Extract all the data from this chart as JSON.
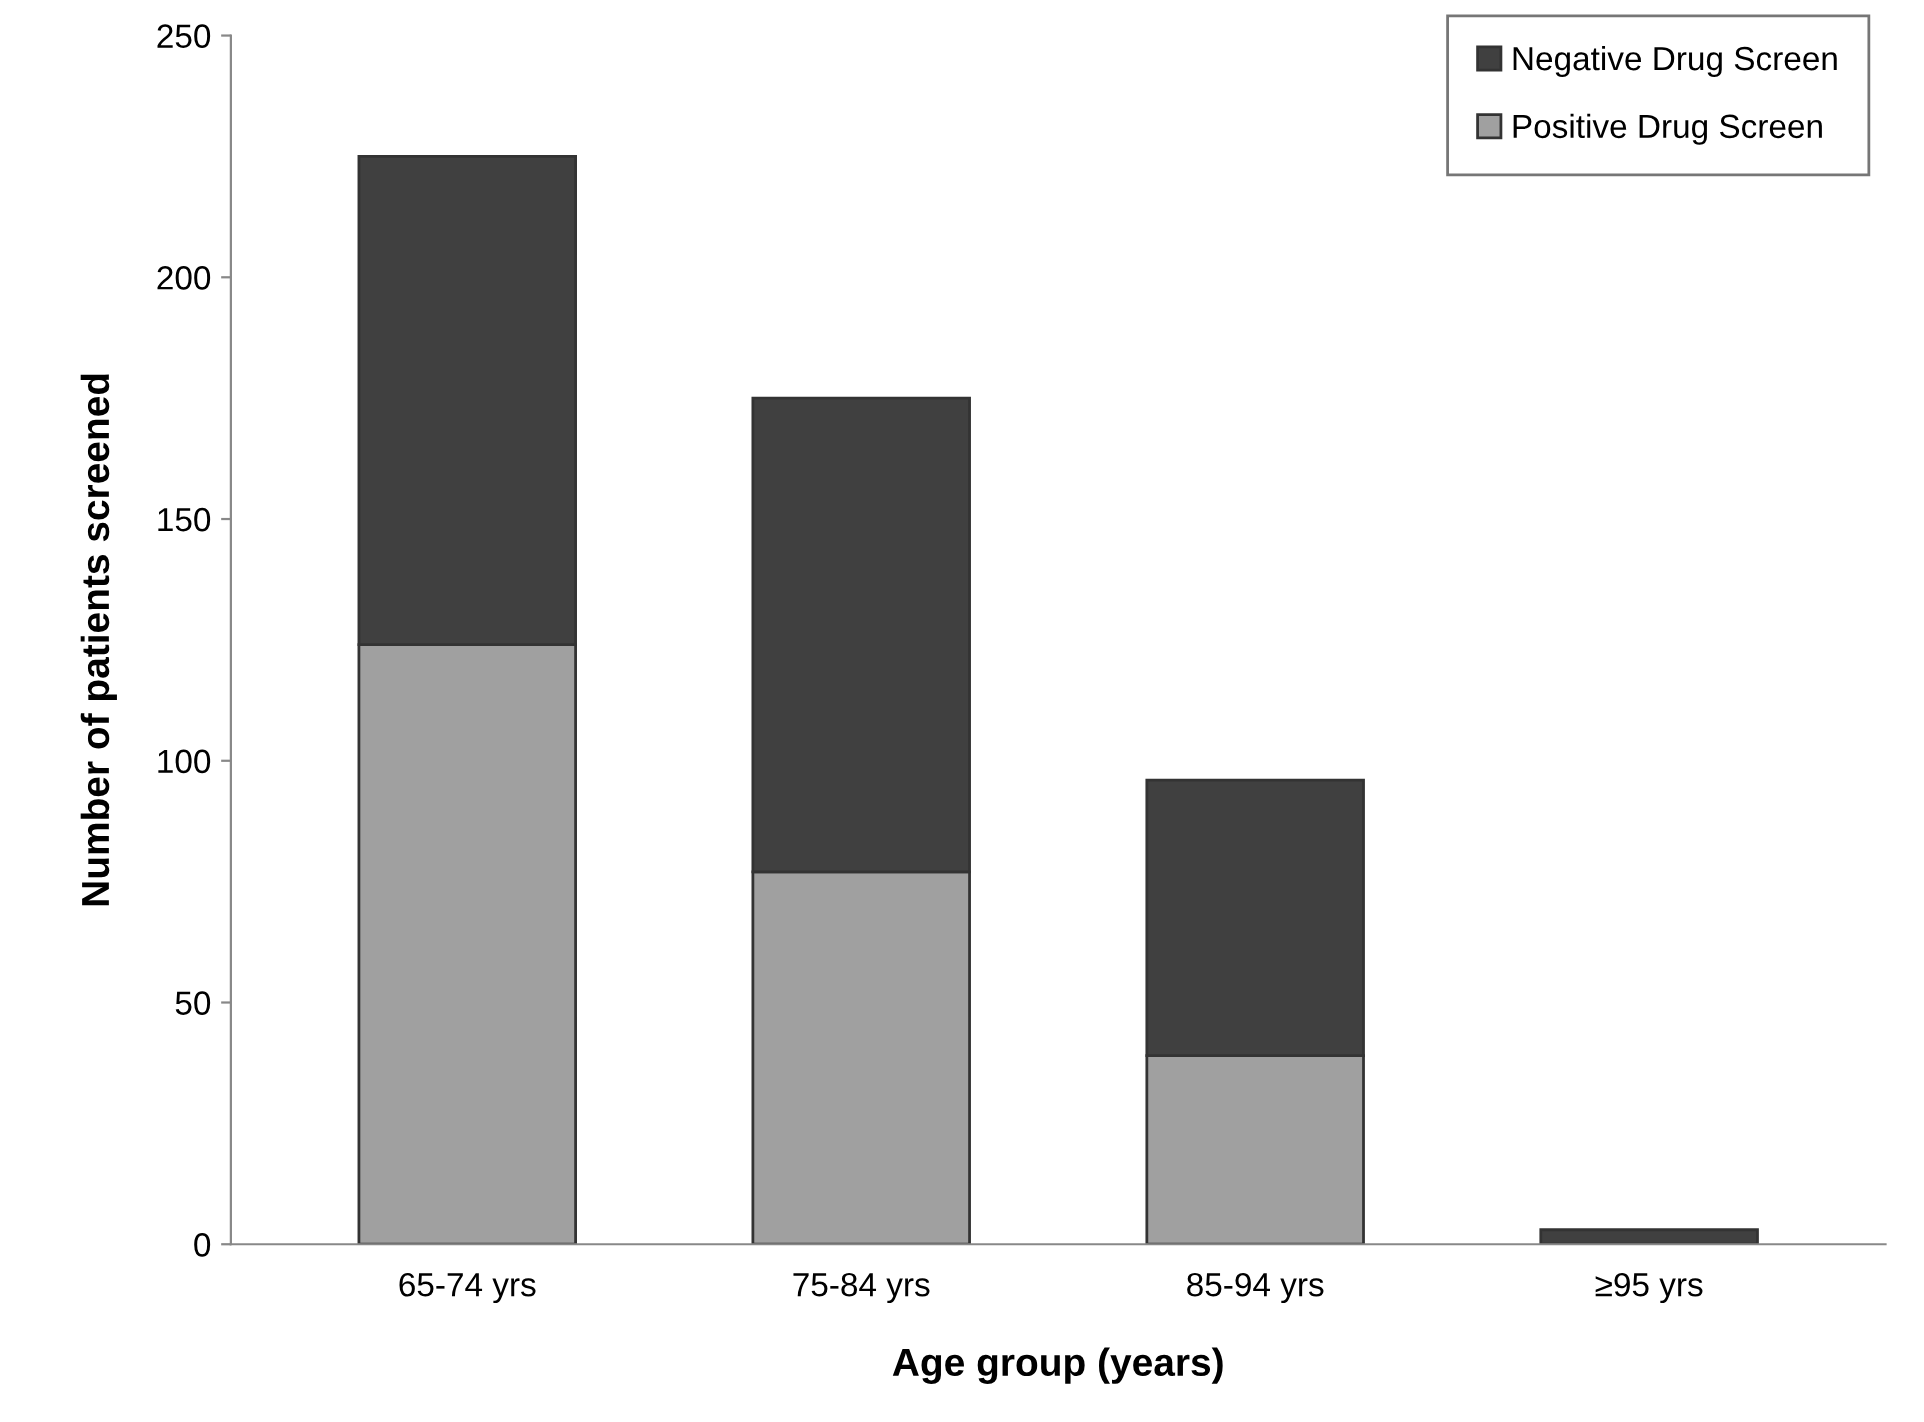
{
  "chart_data": {
    "type": "bar",
    "stacked": true,
    "xlabel": "Age group (years)",
    "ylabel": "Number of patients screened",
    "categories": [
      "65-74 yrs",
      "75-84 yrs",
      "85-94 yrs",
      "≥95 yrs"
    ],
    "series": [
      {
        "name": "Positive Drug Screen",
        "color": "#a0a0a0",
        "values": [
          124,
          77,
          39,
          null
        ]
      },
      {
        "name": "Negative Drug Screen",
        "color": "#404040",
        "values": [
          101,
          98,
          57,
          3
        ]
      }
    ],
    "ylim": [
      0,
      250
    ],
    "yticks": [
      0,
      50,
      100,
      150,
      200,
      250
    ],
    "grid": false,
    "legend": "top right"
  }
}
